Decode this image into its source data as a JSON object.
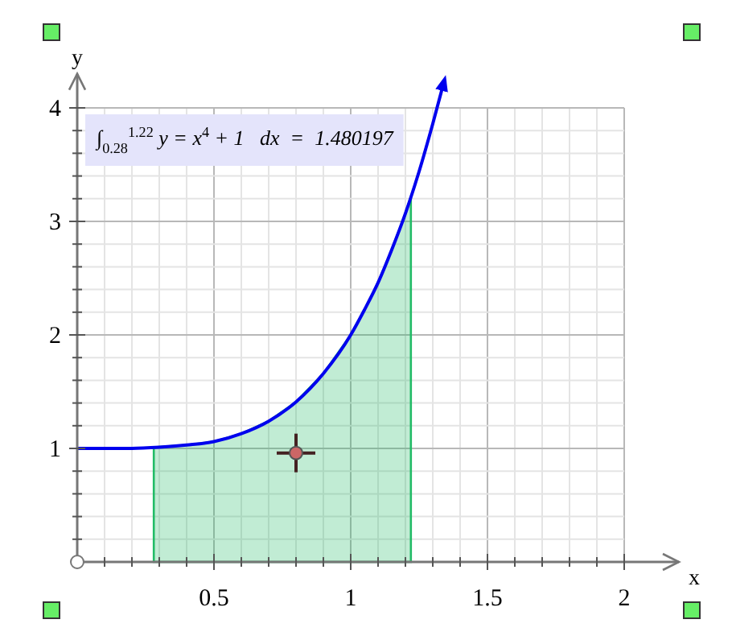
{
  "chart_data": {
    "type": "line",
    "xlabel": "x",
    "ylabel": "y",
    "xlim": [
      0,
      2.2
    ],
    "ylim": [
      0,
      4.3
    ],
    "xticks": [
      {
        "value": 0.1,
        "label": null
      },
      {
        "value": 0.2,
        "label": null
      },
      {
        "value": 0.3,
        "label": null
      },
      {
        "value": 0.4,
        "label": null
      },
      {
        "value": 0.5,
        "label": "0.5"
      },
      {
        "value": 0.6,
        "label": null
      },
      {
        "value": 0.7,
        "label": null
      },
      {
        "value": 0.8,
        "label": null
      },
      {
        "value": 0.9,
        "label": null
      },
      1,
      {
        "value": 1.1,
        "label": null
      },
      {
        "value": 1.2,
        "label": null
      },
      {
        "value": 1.3,
        "label": null
      },
      {
        "value": 1.4,
        "label": null
      },
      1.5,
      {
        "value": 1.6,
        "label": null
      },
      {
        "value": 1.7,
        "label": null
      },
      {
        "value": 1.8,
        "label": null
      },
      {
        "value": 1.9,
        "label": null
      },
      2
    ],
    "yticks": [
      {
        "value": 0.2,
        "label": null
      },
      {
        "value": 0.4,
        "label": null
      },
      {
        "value": 0.6,
        "label": null
      },
      {
        "value": 0.8,
        "label": null
      },
      1,
      {
        "value": 1.2,
        "label": null
      },
      {
        "value": 1.4,
        "label": null
      },
      {
        "value": 1.6,
        "label": null
      },
      {
        "value": 1.8,
        "label": null
      },
      2,
      {
        "value": 2.2,
        "label": null
      },
      {
        "value": 2.4,
        "label": null
      },
      {
        "value": 2.6,
        "label": null
      },
      {
        "value": 2.8,
        "label": null
      },
      3,
      {
        "value": 3.2,
        "label": null
      },
      {
        "value": 3.4,
        "label": null
      },
      {
        "value": 3.6,
        "label": null
      },
      {
        "value": 3.8,
        "label": null
      },
      4
    ],
    "grid": true,
    "series": [
      {
        "type": "area",
        "color": "#22bb66",
        "x": [
          0.28,
          0.4,
          0.5,
          0.6,
          0.7,
          0.8,
          0.9,
          1.0,
          1.05,
          1.1,
          1.15,
          1.2,
          1.22
        ],
        "values": [
          1.01,
          1.03,
          1.06,
          1.13,
          1.24,
          1.41,
          1.66,
          2.0,
          2.22,
          2.46,
          2.75,
          3.07,
          3.22
        ]
      },
      {
        "color": "#0000ee",
        "x": [
          0,
          0.1,
          0.2,
          0.3,
          0.4,
          0.5,
          0.6,
          0.7,
          0.8,
          0.9,
          1.0,
          1.05,
          1.1,
          1.15,
          1.2,
          1.25,
          1.3,
          1.34
        ],
        "values": [
          1,
          1.0,
          1.0,
          1.01,
          1.03,
          1.06,
          1.13,
          1.24,
          1.41,
          1.66,
          2.0,
          2.22,
          2.46,
          2.75,
          3.07,
          3.44,
          3.86,
          4.22
        ]
      },
      {
        "type": "scatter",
        "color": "#cc6666",
        "marker": "circle",
        "x": [
          0.8
        ],
        "values": [
          0.96
        ]
      }
    ],
    "annotations": [
      "∫$_{0.28}$$^{1.22}$ y = x$^{4}$ + 1   dx  =  1.480197"
    ]
  }
}
